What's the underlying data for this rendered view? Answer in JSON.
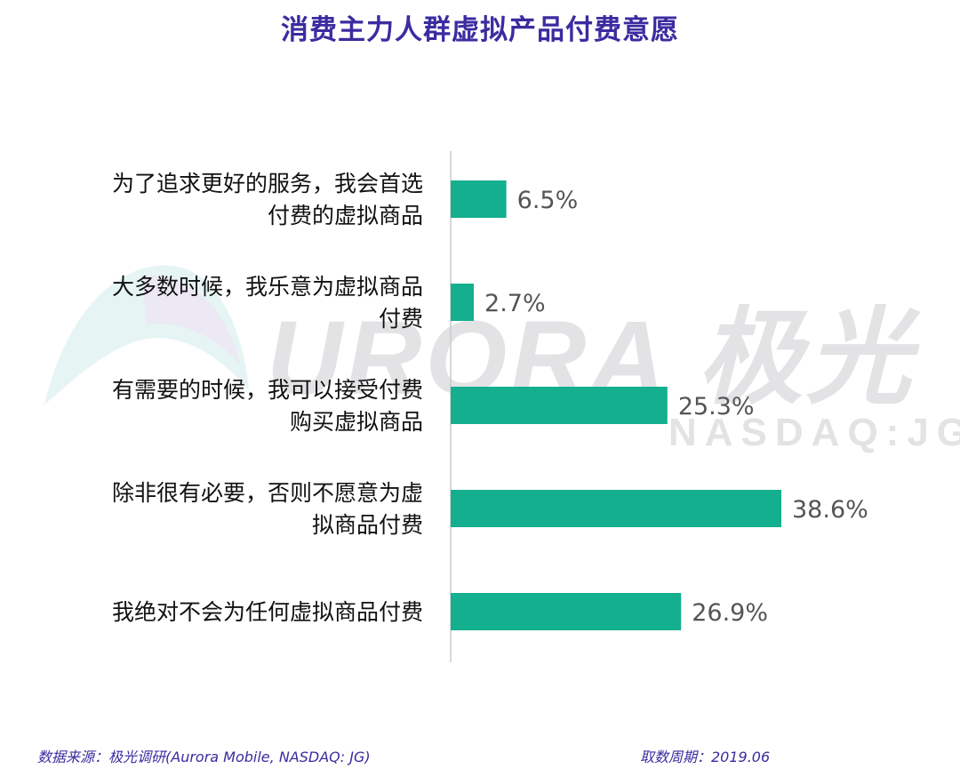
{
  "title": "消费主力人群虚拟产品付费意愿",
  "watermark": {
    "logo_text": "URORA 极光",
    "sub_text": "NASDAQ:JG"
  },
  "colors": {
    "bar": "#14af8e",
    "title": "#3a2ca0",
    "label": "#111111",
    "value": "#555555",
    "axis": "#cccccc"
  },
  "chart_data": {
    "type": "bar",
    "orientation": "horizontal",
    "categories": [
      [
        "为了追求更好的服务，我会首选",
        "付费的虚拟商品"
      ],
      [
        "大多数时候，我乐意为虚拟商品",
        "付费"
      ],
      [
        "有需要的时候，我可以接受付费",
        "购买虚拟商品"
      ],
      [
        "除非很有必要，否则不愿意为虚",
        "拟商品付费"
      ],
      [
        "我绝对不会为任何虚拟商品付费"
      ]
    ],
    "values": [
      6.5,
      2.7,
      25.3,
      38.6,
      26.9
    ],
    "value_labels": [
      "6.5%",
      "2.7%",
      "25.3%",
      "38.6%",
      "26.9%"
    ],
    "xlim": [
      0,
      45
    ],
    "grid": false,
    "legend": "none"
  },
  "footer": {
    "source": "数据来源：极光调研(Aurora Mobile, NASDAQ: JG)",
    "period": "取数周期：2019.06"
  }
}
